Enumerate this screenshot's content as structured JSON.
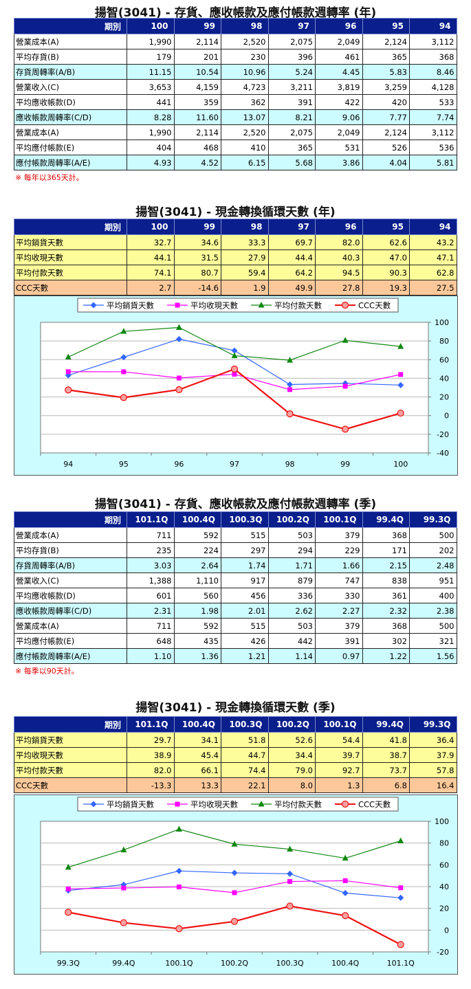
{
  "sections": {
    "turnover_year": {
      "title": "揚智(3041) -  存貨、應收帳款及應付帳款週轉率 (年)",
      "header_label": "期別",
      "periods": [
        "100",
        "99",
        "98",
        "97",
        "96",
        "95",
        "94"
      ],
      "rows": [
        {
          "label": "營業成本(A)",
          "values": [
            "1,990",
            "2,114",
            "2,520",
            "2,075",
            "2,049",
            "2,124",
            "3,112"
          ]
        },
        {
          "label": "平均存貨(B)",
          "values": [
            "179",
            "201",
            "230",
            "396",
            "461",
            "365",
            "368"
          ]
        },
        {
          "label": "存貨周轉率(A/B)",
          "values": [
            "11.15",
            "10.54",
            "10.96",
            "5.24",
            "4.45",
            "5.83",
            "8.46"
          ]
        },
        {
          "label": "營業收入(C)",
          "values": [
            "3,653",
            "4,159",
            "4,723",
            "3,211",
            "3,819",
            "3,259",
            "4,128"
          ]
        },
        {
          "label": "平均應收帳款(D)",
          "values": [
            "441",
            "359",
            "362",
            "391",
            "422",
            "420",
            "533"
          ]
        },
        {
          "label": "應收帳款周轉率(C/D)",
          "values": [
            "8.28",
            "11.60",
            "13.07",
            "8.21",
            "9.06",
            "7.77",
            "7.74"
          ]
        },
        {
          "label": "營業成本(A)",
          "values": [
            "1,990",
            "2,114",
            "2,520",
            "2,075",
            "2,049",
            "2,124",
            "3,112"
          ]
        },
        {
          "label": "平均應付帳款(E)",
          "values": [
            "404",
            "468",
            "410",
            "365",
            "531",
            "526",
            "536"
          ]
        },
        {
          "label": "應付帳款周轉率(A/E)",
          "values": [
            "4.93",
            "4.52",
            "6.15",
            "5.68",
            "3.86",
            "4.04",
            "5.81"
          ]
        }
      ],
      "note": "※ 每年以365天計。"
    },
    "ccc_year": {
      "title": "揚智(3041) -  現金轉換循環天數 (年)",
      "header_label": "期別",
      "periods": [
        "100",
        "99",
        "98",
        "97",
        "96",
        "95",
        "94"
      ],
      "rows": [
        {
          "label": "平均銷貨天數",
          "values": [
            "32.7",
            "34.6",
            "33.3",
            "69.7",
            "82.0",
            "62.6",
            "43.2"
          ]
        },
        {
          "label": "平均收現天數",
          "values": [
            "44.1",
            "31.5",
            "27.9",
            "44.4",
            "40.3",
            "47.0",
            "47.1"
          ]
        },
        {
          "label": "平均付款天數",
          "values": [
            "74.1",
            "80.7",
            "59.4",
            "64.2",
            "94.5",
            "90.3",
            "62.8"
          ]
        },
        {
          "label": "CCC天數",
          "values": [
            "2.7",
            "-14.6",
            "1.9",
            "49.9",
            "27.8",
            "19.3",
            "27.5"
          ]
        }
      ]
    },
    "turnover_quarter": {
      "title": "揚智(3041) -  存貨、應收帳款及應付帳款週轉率 (季)",
      "header_label": "期別",
      "periods": [
        "101.1Q",
        "100.4Q",
        "100.3Q",
        "100.2Q",
        "100.1Q",
        "99.4Q",
        "99.3Q"
      ],
      "rows": [
        {
          "label": "營業成本(A)",
          "values": [
            "711",
            "592",
            "515",
            "503",
            "379",
            "368",
            "500"
          ]
        },
        {
          "label": "平均存貨(B)",
          "values": [
            "235",
            "224",
            "297",
            "294",
            "229",
            "171",
            "202"
          ]
        },
        {
          "label": "存貨周轉率(A/B)",
          "values": [
            "3.03",
            "2.64",
            "1.74",
            "1.71",
            "1.66",
            "2.15",
            "2.48"
          ]
        },
        {
          "label": "營業收入(C)",
          "values": [
            "1,388",
            "1,110",
            "917",
            "879",
            "747",
            "838",
            "951"
          ]
        },
        {
          "label": "平均應收帳款(D)",
          "values": [
            "601",
            "560",
            "456",
            "336",
            "330",
            "361",
            "400"
          ]
        },
        {
          "label": "應收帳款周轉率(C/D)",
          "values": [
            "2.31",
            "1.98",
            "2.01",
            "2.62",
            "2.27",
            "2.32",
            "2.38"
          ]
        },
        {
          "label": "營業成本(A)",
          "values": [
            "711",
            "592",
            "515",
            "503",
            "379",
            "368",
            "500"
          ]
        },
        {
          "label": "平均應付帳款(E)",
          "values": [
            "648",
            "435",
            "426",
            "442",
            "391",
            "302",
            "321"
          ]
        },
        {
          "label": "應付帳款周轉率(A/E)",
          "values": [
            "1.10",
            "1.36",
            "1.21",
            "1.14",
            "0.97",
            "1.22",
            "1.56"
          ]
        }
      ],
      "note": "※ 每季以90天計。"
    },
    "ccc_quarter": {
      "title": "揚智(3041) -  現金轉換循環天數 (季)",
      "header_label": "期別",
      "periods": [
        "101.1Q",
        "100.4Q",
        "100.3Q",
        "100.2Q",
        "100.1Q",
        "99.4Q",
        "99.3Q"
      ],
      "rows": [
        {
          "label": "平均銷貨天數",
          "values": [
            "29.7",
            "34.1",
            "51.8",
            "52.6",
            "54.4",
            "41.8",
            "36.4"
          ]
        },
        {
          "label": "平均收現天數",
          "values": [
            "38.9",
            "45.4",
            "44.7",
            "34.4",
            "39.7",
            "38.7",
            "37.9"
          ]
        },
        {
          "label": "平均付款天數",
          "values": [
            "82.0",
            "66.1",
            "74.4",
            "79.0",
            "92.7",
            "73.7",
            "57.8"
          ]
        },
        {
          "label": "CCC天數",
          "values": [
            "-13.3",
            "13.3",
            "22.1",
            "8.0",
            "1.3",
            "6.8",
            "16.4"
          ]
        }
      ]
    }
  },
  "series_colors": {
    "sales_days": "#3366ff",
    "collection_days": "#ff00ff",
    "payment_days": "#118811",
    "ccc_days": "#ee1111"
  },
  "chart_data": [
    {
      "type": "line",
      "x": [
        "94",
        "95",
        "96",
        "97",
        "98",
        "99",
        "100"
      ],
      "ylim": [
        -40,
        100
      ],
      "yticks": [
        -40,
        -20,
        0,
        20,
        40,
        60,
        80,
        100
      ],
      "grid": true,
      "legend_position": "top",
      "series": [
        {
          "name": "平均銷貨天數",
          "values": [
            43.2,
            62.6,
            82.0,
            69.7,
            33.3,
            34.6,
            32.7
          ]
        },
        {
          "name": "平均收現天數",
          "values": [
            47.1,
            47.0,
            40.3,
            44.4,
            27.9,
            31.5,
            44.1
          ]
        },
        {
          "name": "平均付款天數",
          "values": [
            62.8,
            90.3,
            94.5,
            64.2,
            59.4,
            80.7,
            74.1
          ]
        },
        {
          "name": "CCC天數",
          "values": [
            27.5,
            19.3,
            27.8,
            49.9,
            1.9,
            -14.6,
            2.7
          ]
        }
      ]
    },
    {
      "type": "line",
      "x": [
        "99.3Q",
        "99.4Q",
        "100.1Q",
        "100.2Q",
        "100.3Q",
        "100.4Q",
        "101.1Q"
      ],
      "ylim": [
        -20,
        100
      ],
      "yticks": [
        -20,
        0,
        20,
        40,
        60,
        80,
        100
      ],
      "grid": true,
      "legend_position": "top",
      "series": [
        {
          "name": "平均銷貨天數",
          "values": [
            36.4,
            41.8,
            54.4,
            52.6,
            51.8,
            34.1,
            29.7
          ]
        },
        {
          "name": "平均收現天數",
          "values": [
            37.9,
            38.7,
            39.7,
            34.4,
            44.7,
            45.4,
            38.9
          ]
        },
        {
          "name": "平均付款天數",
          "values": [
            57.8,
            73.7,
            92.7,
            79.0,
            74.4,
            66.1,
            82.0
          ]
        },
        {
          "name": "CCC天數",
          "values": [
            16.4,
            6.8,
            1.3,
            8.0,
            22.1,
            13.3,
            -13.3
          ]
        }
      ]
    }
  ]
}
